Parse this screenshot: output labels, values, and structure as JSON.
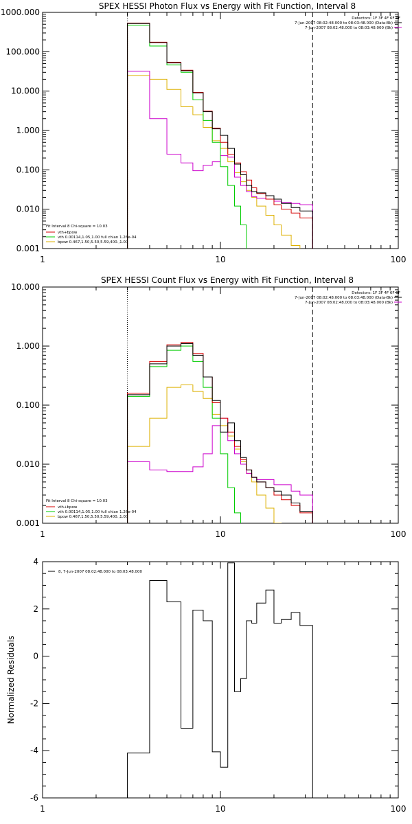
{
  "colors": {
    "total": "#000000",
    "model": "#d40000",
    "vth": "#00cc00",
    "bpow": "#ddb000",
    "bk": "#cc00cc",
    "frame": "#000000"
  },
  "chart_data": [
    {
      "type": "line",
      "title": "SPEX HESSI Photon Flux vs Energy with Fit Function, Interval 8",
      "xscale": "log",
      "yscale": "log",
      "xlim": [
        1,
        100
      ],
      "ylim": [
        0.001,
        1000
      ],
      "x_ticks": [
        "1",
        "10",
        "100"
      ],
      "y_ticks": [
        "0.001",
        "0.010",
        "0.100",
        "1.000",
        "10.000",
        "100.000",
        "1000.000"
      ],
      "fit_range": [
        3,
        33
      ],
      "info_lines": [
        "Detectors: 1F 3F 4F 6F 9F",
        "7-Jun-2007 08:02:48.000 to 08:03:48.000 (Data-Bk)",
        "7-Jun-2007 08:02:48.000 to 08:03:48.000 (Bk)"
      ],
      "fit_legend": [
        "Fit Interval  8    Chi-square = 10.03",
        "vth+bpow",
        "vth 0.00114,1.05,1.00  full chian 1.26e-04",
        "bpow 0.467,1.50,5.50,5.59,400.,1.00"
      ],
      "energy_edges": [
        3,
        4,
        5,
        6,
        7,
        8,
        9,
        10,
        11,
        12,
        13,
        14,
        15,
        16,
        18,
        20,
        22,
        25,
        28,
        33
      ],
      "series": [
        {
          "key": "total",
          "values": [
            520,
            170,
            52,
            33,
            9,
            3.0,
            1.1,
            0.75,
            0.35,
            0.14,
            0.075,
            0.04,
            0.028,
            0.026,
            0.022,
            0.018,
            0.014,
            0.011,
            0.009
          ]
        },
        {
          "key": "model",
          "values": [
            530,
            175,
            54,
            34,
            9.3,
            3.1,
            1.15,
            0.5,
            0.25,
            0.15,
            0.09,
            0.055,
            0.035,
            0.025,
            0.018,
            0.013,
            0.01,
            0.008,
            0.006
          ]
        },
        {
          "key": "vth",
          "values": [
            470,
            140,
            46,
            30,
            6,
            1.8,
            0.5,
            0.12,
            0.04,
            0.012,
            0.004,
            0.0008
          ]
        },
        {
          "key": "bpow",
          "values": [
            25,
            20,
            11,
            4,
            2.5,
            1.2,
            0.55,
            0.35,
            0.16,
            0.085,
            0.05,
            0.03,
            0.02,
            0.012,
            0.007,
            0.004,
            0.0022,
            0.0012,
            0.0006
          ]
        },
        {
          "key": "bk",
          "values": [
            32,
            2,
            0.25,
            0.15,
            0.095,
            0.13,
            0.16,
            0.23,
            0.21,
            0.065,
            0.04,
            0.028,
            0.021,
            0.019,
            0.018,
            0.016,
            0.015,
            0.014,
            0.013
          ]
        }
      ]
    },
    {
      "type": "line",
      "title": "SPEX HESSI Count Flux vs Energy with Fit Function, Interval 8",
      "xscale": "log",
      "yscale": "log",
      "xlim": [
        1,
        100
      ],
      "ylim": [
        0.001,
        10
      ],
      "x_ticks": [
        "1",
        "10",
        "100"
      ],
      "y_ticks": [
        "0.001",
        "0.010",
        "0.100",
        "1.000",
        "10.000"
      ],
      "fit_range": [
        3,
        33
      ],
      "info_lines": [
        "Detectors: 1F 3F 4F 6F 9F",
        "7-Jun-2007 08:02:48.000 to 08:03:48.000 (Data-Bk)",
        "7-Jun-2007 08:02:48.000 to 08:03:48.000 (Bk)"
      ],
      "fit_legend": [
        "Fit Interval  8    Chi-square = 10.03",
        "vth+bpow",
        "vth 0.00114,1.05,1.00  full chian 1.26e-04",
        "bpow 0.467,1.50,5.50,5.59,400.,1.00"
      ],
      "energy_edges": [
        3,
        4,
        5,
        6,
        7,
        8,
        9,
        10,
        11,
        12,
        13,
        14,
        15,
        16,
        18,
        20,
        22,
        25,
        28,
        33
      ],
      "series": [
        {
          "key": "total",
          "values": [
            0.15,
            0.5,
            1.0,
            1.1,
            0.7,
            0.3,
            0.12,
            0.035,
            0.05,
            0.025,
            0.013,
            0.008,
            0.006,
            0.005,
            0.004,
            0.0035,
            0.003,
            0.0022,
            0.0016
          ]
        },
        {
          "key": "model",
          "values": [
            0.16,
            0.55,
            1.05,
            1.15,
            0.75,
            0.3,
            0.11,
            0.06,
            0.035,
            0.02,
            0.012,
            0.008,
            0.006,
            0.005,
            0.004,
            0.003,
            0.0025,
            0.002,
            0.0015
          ]
        },
        {
          "key": "vth",
          "values": [
            0.14,
            0.45,
            0.85,
            1.0,
            0.55,
            0.2,
            0.06,
            0.015,
            0.004,
            0.0015,
            0.0006
          ]
        },
        {
          "key": "bpow",
          "values": [
            0.02,
            0.06,
            0.2,
            0.22,
            0.17,
            0.13,
            0.07,
            0.045,
            0.03,
            0.018,
            0.011,
            0.007,
            0.005,
            0.003,
            0.0018,
            0.001
          ]
        },
        {
          "key": "bk",
          "values": [
            0.011,
            0.008,
            0.0075,
            0.0075,
            0.009,
            0.015,
            0.045,
            0.06,
            0.025,
            0.015,
            0.01,
            0.007,
            0.006,
            0.0055,
            0.0055,
            0.0045,
            0.0045,
            0.0035,
            0.003
          ]
        }
      ]
    },
    {
      "type": "line",
      "title": "",
      "xscale": "linear",
      "ylabel": "Normalized Residuals",
      "xlim": [
        1,
        100
      ],
      "ylim": [
        -6,
        4
      ],
      "x_ticks": [
        "1",
        "10",
        "100"
      ],
      "y_ticks": [
        "-6",
        "-4",
        "-2",
        "0",
        "2",
        "4"
      ],
      "legend": "8,  7-Jun-2007 08:02:48.000 to 08:03:48.000",
      "energy_edges": [
        3,
        4,
        5,
        6,
        7,
        8,
        9,
        10,
        11,
        12,
        13,
        14,
        15,
        16,
        18,
        20,
        22,
        25,
        28,
        33
      ],
      "values": [
        -4.1,
        3.2,
        2.3,
        -3.05,
        1.95,
        1.5,
        -4.05,
        -4.7,
        3.95,
        -1.5,
        -0.95,
        1.5,
        1.4,
        2.25,
        2.8,
        1.4,
        1.55,
        1.85,
        1.3
      ]
    }
  ]
}
